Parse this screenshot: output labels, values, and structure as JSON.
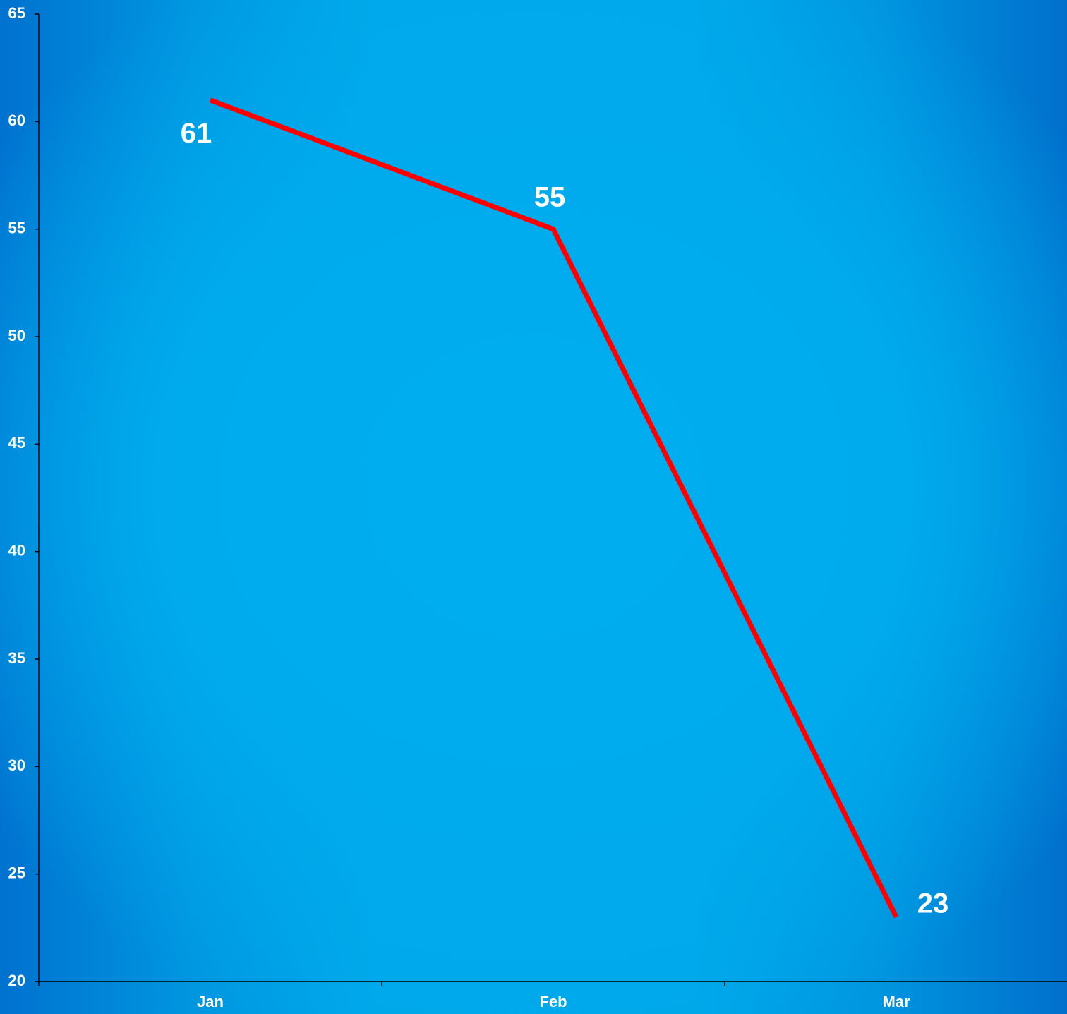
{
  "chart_data": {
    "type": "line",
    "categories": [
      "Jan",
      "Feb",
      "Mar"
    ],
    "series": [
      {
        "values": [
          61,
          55,
          23
        ],
        "color": "#ff0000"
      }
    ],
    "ylim": [
      20,
      65
    ],
    "yticks": [
      "20",
      "25",
      "30",
      "35",
      "40",
      "45",
      "50",
      "55",
      "60",
      "65"
    ],
    "data_labels": [
      "61",
      "55",
      "23"
    ],
    "grid": false,
    "legend": "none",
    "title": "",
    "xlabel": "",
    "ylabel": ""
  }
}
